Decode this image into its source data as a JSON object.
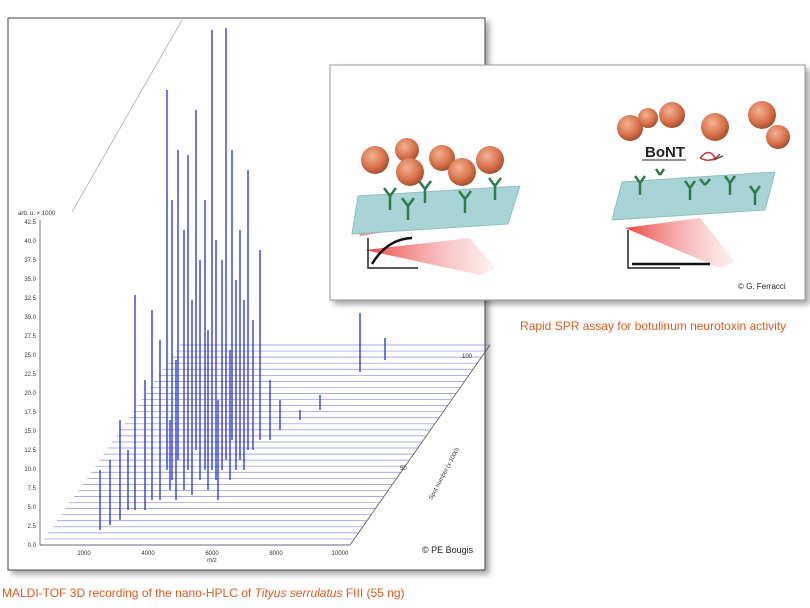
{
  "left_panel": {
    "y_axis_header": "arb. u. × 1000",
    "y_tick_labels": [
      "0.0",
      "2.5",
      "5.0",
      "7.5",
      "10.0",
      "12.5",
      "15.0",
      "17.5",
      "20.0",
      "22.5",
      "25.0",
      "27.5",
      "30.0",
      "32.5",
      "35.0",
      "37.5",
      "40.0",
      "42.5"
    ],
    "x_tick_labels": [
      "2000",
      "4000",
      "6000",
      "8000",
      "10000"
    ],
    "x_axis_label": "m/z",
    "depth_tick_labels": [
      "100",
      "50"
    ],
    "depth_axis_label": "Spot number (x 1000)",
    "credit": "© PE Bougis",
    "caption": {
      "before": "MALDI-TOF 3D recording of the nano-HPLC of ",
      "italic": "Tityus serrulatus",
      "after": " FIII (55 ng)"
    }
  },
  "right_panel": {
    "label": "BoNT",
    "credit": "© G. Ferracci",
    "caption": "Rapid SPR assay for botulinum neurotoxin activity"
  }
}
